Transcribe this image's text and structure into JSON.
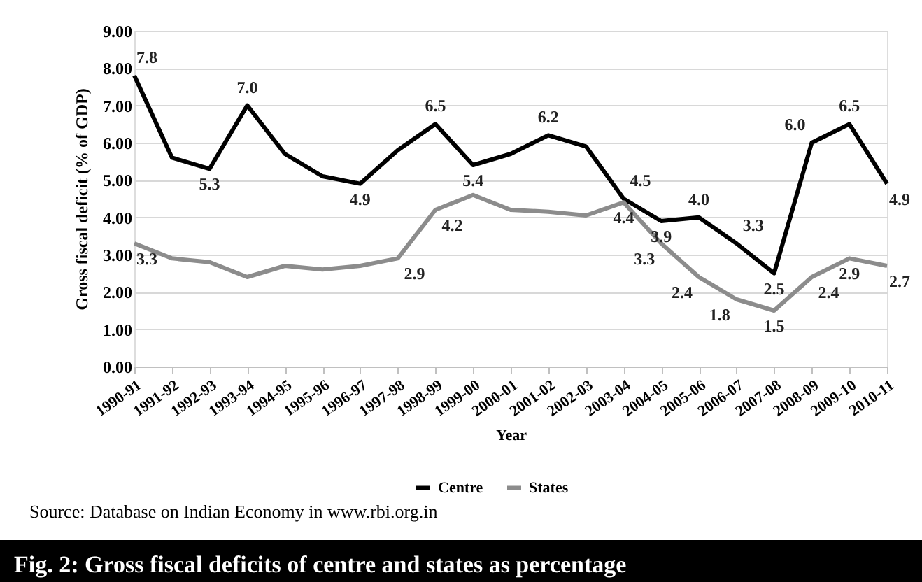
{
  "chart_data": {
    "type": "line",
    "categories": [
      "1990-91",
      "1991-92",
      "1992-93",
      "1993-94",
      "1994-95",
      "1995-96",
      "1996-97",
      "1997-98",
      "1998-99",
      "1999-00",
      "2000-01",
      "2001-02",
      "2002-03",
      "2003-04",
      "2004-05",
      "2005-06",
      "2006-07",
      "2007-08",
      "2008-09",
      "2009-10",
      "2010-11"
    ],
    "series": [
      {
        "name": "Centre",
        "color": "#000000",
        "values": [
          7.8,
          5.6,
          5.3,
          7.0,
          5.7,
          5.1,
          4.9,
          5.8,
          6.5,
          5.4,
          5.7,
          6.2,
          5.9,
          4.5,
          3.9,
          4.0,
          3.3,
          2.5,
          6.0,
          6.5,
          4.9
        ],
        "value_labels": [
          "7.8",
          null,
          "5.3",
          "7.0",
          null,
          null,
          "4.9",
          null,
          "6.5",
          "5.4",
          null,
          "6.2",
          null,
          "4.5",
          "3.9",
          "4.0",
          "3.3",
          "2.5",
          "6.0",
          "6.5",
          "4.9"
        ]
      },
      {
        "name": "States",
        "color": "#8c8c8c",
        "values": [
          3.3,
          2.9,
          2.8,
          2.4,
          2.7,
          2.6,
          2.7,
          2.9,
          4.2,
          4.6,
          4.2,
          4.15,
          4.05,
          4.4,
          3.3,
          2.4,
          1.8,
          1.5,
          2.4,
          2.9,
          2.7
        ],
        "value_labels": [
          "3.3",
          null,
          null,
          null,
          null,
          null,
          null,
          "2.9",
          "4.2",
          null,
          null,
          null,
          null,
          "4.4",
          "3.3",
          "2.4",
          "1.8",
          "1.5",
          "2.4",
          "2.9",
          "2.7"
        ]
      }
    ],
    "xlabel": "Year",
    "ylabel": "Gross fiscal deficit (% of GDP)",
    "ylim": [
      0,
      9
    ],
    "yticks": [
      {
        "value": 0,
        "label": "0.00"
      },
      {
        "value": 1,
        "label": "1.00"
      },
      {
        "value": 2,
        "label": "2.00"
      },
      {
        "value": 3,
        "label": "3.00"
      },
      {
        "value": 4,
        "label": "4.00"
      },
      {
        "value": 5,
        "label": "5.00"
      },
      {
        "value": 6,
        "label": "6.00"
      },
      {
        "value": 7,
        "label": "7.00"
      },
      {
        "value": 8,
        "label": "8.00"
      },
      {
        "value": 9,
        "label": "9.00"
      }
    ],
    "grid": "y",
    "legend": "bottom",
    "marker": "none",
    "line_style": "solid",
    "annotations": [
      "Source: Database on Indian Economy in www.rbi.org.in",
      "Fig. 2:  Gross fiscal deficits of centre and states as percentage"
    ]
  }
}
